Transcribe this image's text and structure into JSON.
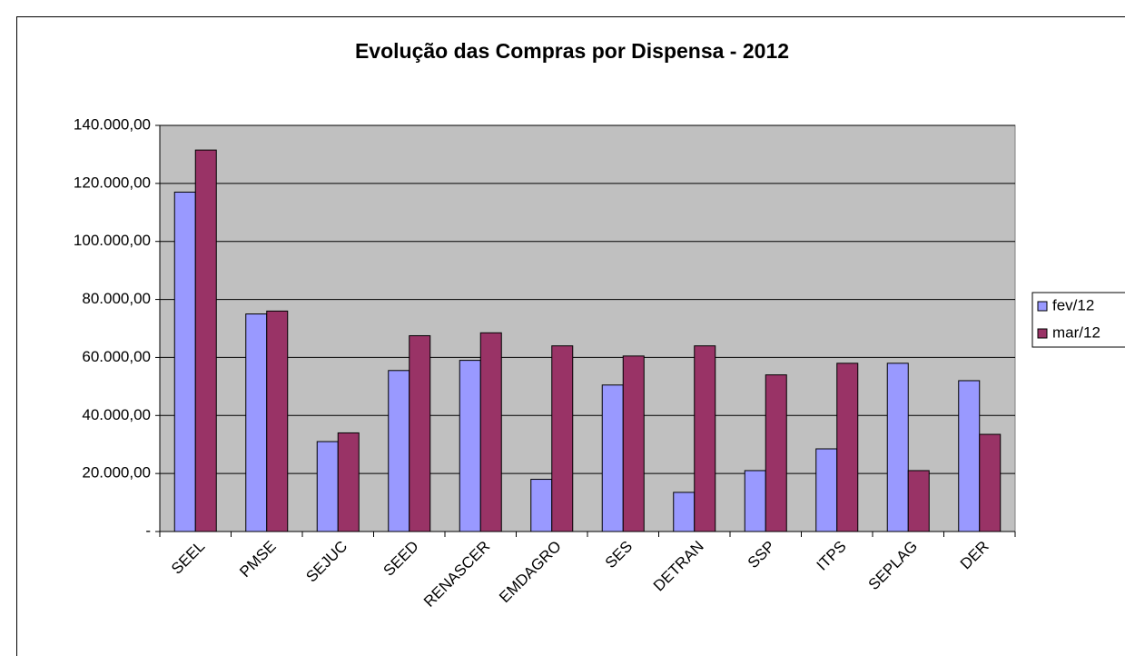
{
  "chart_data": {
    "type": "bar",
    "title": "Evolução das Compras por Dispensa - 2012",
    "categories": [
      "SEEL",
      "PMSE",
      "SEJUC",
      "SEED",
      "RENASCER",
      "EMDAGRO",
      "SES",
      "DETRAN",
      "SSP",
      "ITPS",
      "SEPLAG",
      "DER"
    ],
    "series": [
      {
        "name": "fev/12",
        "color": "#9999ff",
        "values": [
          117000,
          75000,
          31000,
          55500,
          59000,
          18000,
          50500,
          13500,
          21000,
          28500,
          58000,
          52000
        ]
      },
      {
        "name": "mar/12",
        "color": "#993366",
        "values": [
          131500,
          76000,
          34000,
          67500,
          68500,
          64000,
          60500,
          64000,
          54000,
          58000,
          21000,
          33500
        ]
      }
    ],
    "ylim": [
      0,
      140000
    ],
    "yticks": [
      {
        "value": 0,
        "label": "-"
      },
      {
        "value": 20000,
        "label": "20.000,00"
      },
      {
        "value": 40000,
        "label": "40.000,00"
      },
      {
        "value": 60000,
        "label": "60.000,00"
      },
      {
        "value": 80000,
        "label": "80.000,00"
      },
      {
        "value": 100000,
        "label": "100.000,00"
      },
      {
        "value": 120000,
        "label": "120.000,00"
      },
      {
        "value": 140000,
        "label": "140.000,00"
      }
    ],
    "grid": true,
    "legend": "right"
  }
}
